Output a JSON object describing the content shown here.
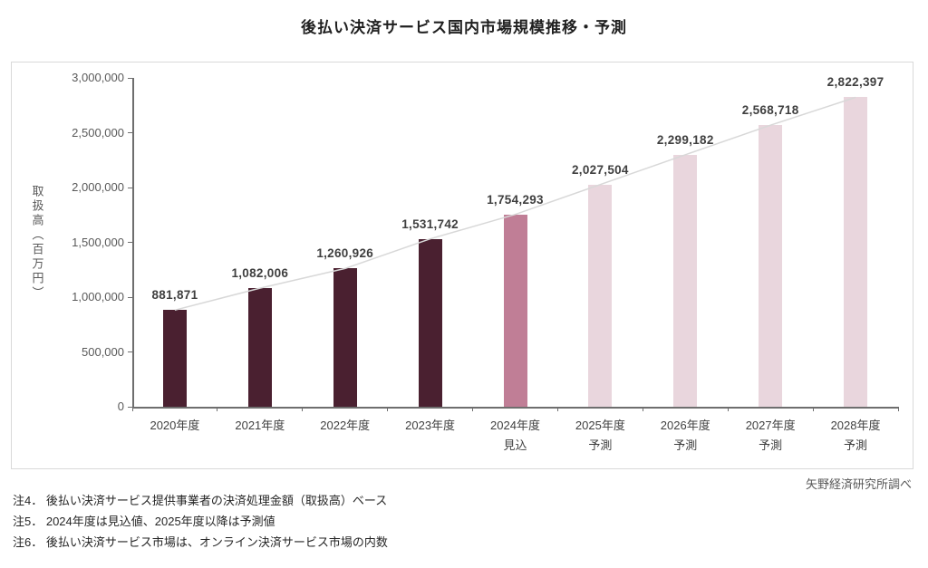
{
  "title": "後払い決済サービス国内市場規模推移・予測",
  "source": "矢野経済研究所調べ",
  "notes": [
    "注4． 後払い決済サービス提供事業者の決済処理金額（取扱高）ベース",
    "注5． 2024年度は見込値、2025年度以降は予測値",
    "注6． 後払い決済サービス市場は、オンライン決済サービス市場の内数"
  ],
  "chart_data": {
    "type": "bar",
    "title": "後払い決済サービス国内市場規模推移・予測",
    "xlabel": "",
    "ylabel": "取扱高（百万円）",
    "ylim": [
      0,
      3000000
    ],
    "ytick_interval": 500000,
    "ytick_labels": [
      "0",
      "500,000",
      "1,000,000",
      "1,500,000",
      "2,000,000",
      "2,500,000",
      "3,000,000"
    ],
    "grid": false,
    "legend": "none",
    "categories": [
      {
        "year": "2020年度",
        "sub": ""
      },
      {
        "year": "2021年度",
        "sub": ""
      },
      {
        "year": "2022年度",
        "sub": ""
      },
      {
        "year": "2023年度",
        "sub": ""
      },
      {
        "year": "2024年度",
        "sub": "見込"
      },
      {
        "year": "2025年度",
        "sub": "予測"
      },
      {
        "year": "2026年度",
        "sub": "予測"
      },
      {
        "year": "2027年度",
        "sub": "予測"
      },
      {
        "year": "2028年度",
        "sub": "予測"
      }
    ],
    "values": [
      881871,
      1082006,
      1260926,
      1531742,
      1754293,
      2027504,
      2299182,
      2568718,
      2822397
    ],
    "value_labels": [
      "881,871",
      "1,082,006",
      "1,260,926",
      "1,531,742",
      "1,754,293",
      "2,027,504",
      "2,299,182",
      "2,568,718",
      "2,822,397"
    ],
    "bar_types": [
      "actual",
      "actual",
      "actual",
      "actual",
      "estimate",
      "forecast",
      "forecast",
      "forecast",
      "forecast"
    ],
    "colors": {
      "actual": "#4a2030",
      "estimate": "#c07e96",
      "forecast": "#e9d6dd",
      "line": "#d8d8d8",
      "axis": "#6e6e6e",
      "label": "#3f3f3f"
    }
  }
}
